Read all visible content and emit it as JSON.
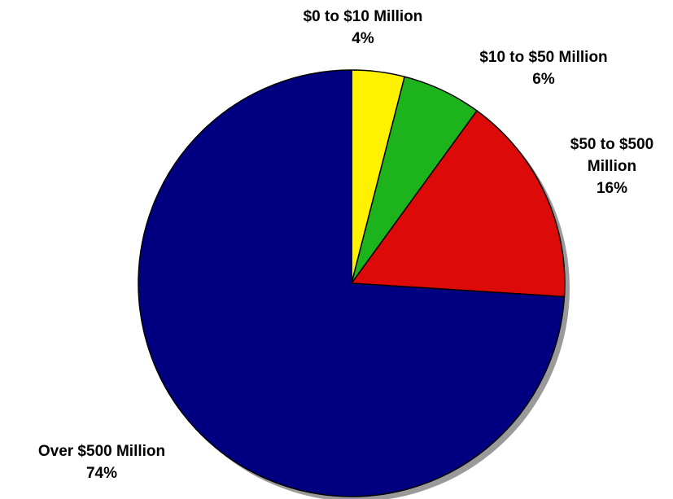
{
  "chart_data": {
    "type": "pie",
    "title": "",
    "start_angle_deg": 0,
    "direction": "clockwise",
    "shadow": true,
    "slices": [
      {
        "label": "$0 to $10 Million",
        "pct_label": "4%",
        "value": 4,
        "color": "#FFF200"
      },
      {
        "label": "$10 to $50 Million",
        "pct_label": "6%",
        "value": 6,
        "color": "#1DB31D"
      },
      {
        "label": "$50 to $500 Million",
        "label_lines": [
          "$50 to $500",
          "Million"
        ],
        "pct_label": "16%",
        "value": 16,
        "color": "#DD0A0A"
      },
      {
        "label": "Over $500 Million",
        "pct_label": "74%",
        "value": 74,
        "color": "#000080"
      }
    ]
  }
}
